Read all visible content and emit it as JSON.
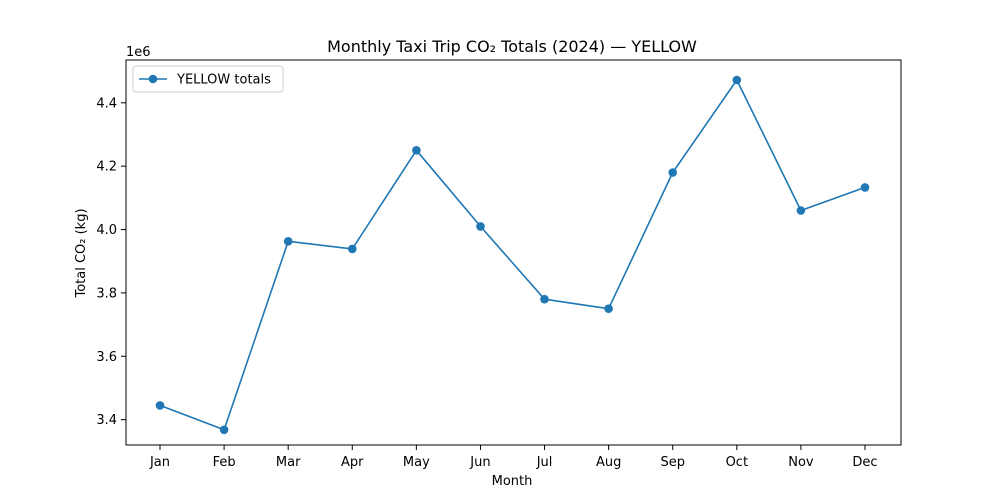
{
  "chart_data": {
    "type": "line",
    "title": "Monthly Taxi Trip CO₂ Totals (2024) — YELLOW",
    "xlabel": "Month",
    "ylabel": "Total CO₂ (kg)",
    "y_offset_label": "1e6",
    "categories": [
      "Jan",
      "Feb",
      "Mar",
      "Apr",
      "May",
      "Jun",
      "Jul",
      "Aug",
      "Sep",
      "Oct",
      "Nov",
      "Dec"
    ],
    "series": [
      {
        "name": "YELLOW totals",
        "color": "#1f77b4",
        "marker": "circle",
        "values": [
          3445000,
          3368000,
          3963000,
          3939000,
          4250000,
          4010000,
          3780000,
          3750000,
          4180000,
          4472000,
          4060000,
          4133000
        ]
      }
    ],
    "ylim": [
      3320000,
      4535000
    ],
    "yticks": [
      3400000,
      3600000,
      3800000,
      4000000,
      4200000,
      4400000
    ],
    "ytick_labels": [
      "3.4",
      "3.6",
      "3.8",
      "4.0",
      "4.2",
      "4.4"
    ],
    "grid": false,
    "legend_position": "upper left"
  }
}
